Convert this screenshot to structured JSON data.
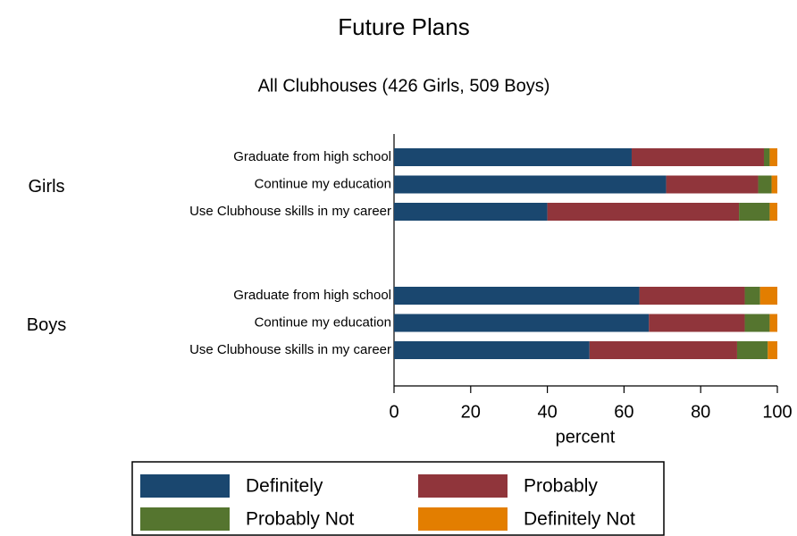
{
  "chart_data": {
    "type": "stacked_bar_horizontal",
    "title": "Future Plans",
    "subtitle": "All Clubhouses (426 Girls, 509 Boys)",
    "xlabel": "percent",
    "groups": [
      "Girls",
      "Boys"
    ],
    "categories": [
      "Graduate from high school",
      "Continue my education",
      "Use Clubhouse skills in my career",
      "Graduate from high school",
      "Continue my education",
      "Use Clubhouse skills in my career"
    ],
    "series": [
      {
        "name": "Definitely",
        "color": "#1a476f",
        "values": [
          62,
          71,
          40,
          64,
          66.5,
          51
        ]
      },
      {
        "name": "Probably",
        "color": "#90353b",
        "values": [
          34.5,
          24,
          50,
          27.5,
          25,
          38.5
        ]
      },
      {
        "name": "Probably Not",
        "color": "#55752f",
        "values": [
          1.5,
          3.5,
          8,
          4,
          6.5,
          8
        ]
      },
      {
        "name": "Definitely Not",
        "color": "#e37e00",
        "values": [
          2,
          1.5,
          2,
          4.5,
          2,
          2.5
        ]
      }
    ],
    "xlim": [
      0,
      100
    ],
    "xticks": [
      0,
      20,
      40,
      60,
      80,
      100
    ],
    "legend": "bottom"
  }
}
